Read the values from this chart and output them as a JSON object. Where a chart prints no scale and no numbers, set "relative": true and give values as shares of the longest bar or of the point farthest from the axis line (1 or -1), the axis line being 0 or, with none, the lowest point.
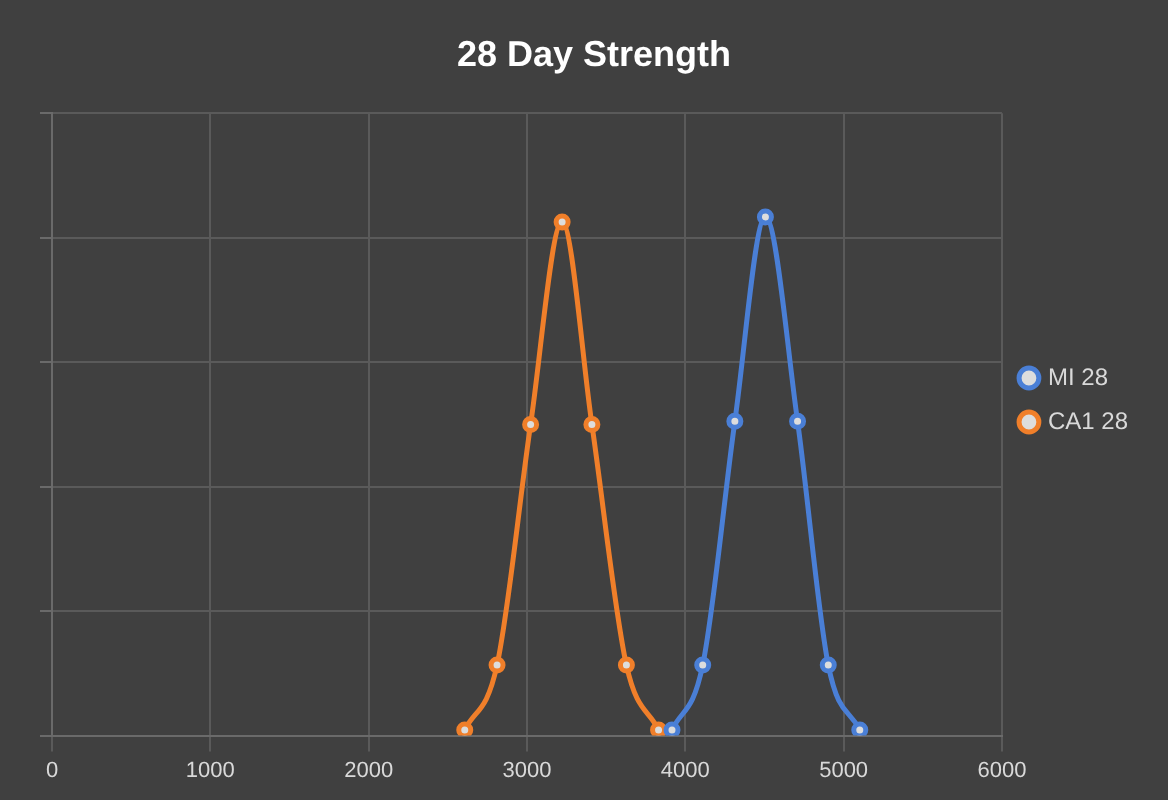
{
  "chart_data": {
    "type": "line",
    "title": "28 Day Strength",
    "relative": true,
    "xlim": [
      0,
      6000
    ],
    "xticks": [
      0,
      1000,
      2000,
      3000,
      4000,
      5000,
      6000
    ],
    "grid": true,
    "legend": "right",
    "marker": "circle",
    "tick_labels": "x",
    "series": [
      {
        "name": "MI 28",
        "color": "#4a7fd6",
        "x": [
          3916,
          4110,
          4313,
          4506,
          4709,
          4903,
          5102
        ],
        "values": [
          0.011,
          0.136,
          0.606,
          1,
          0.606,
          0.136,
          0.011
        ]
      },
      {
        "name": "CA1 28",
        "color": "#f07f2a",
        "x": [
          2607,
          2811,
          3023,
          3222,
          3410,
          3628,
          3831
        ],
        "values": [
          0.011,
          0.136,
          0.6,
          0.99,
          0.6,
          0.136,
          0.011
        ]
      }
    ]
  }
}
